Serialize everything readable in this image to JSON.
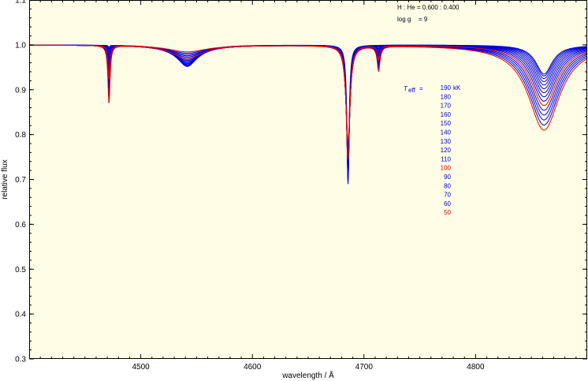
{
  "chart_data": {
    "type": "line",
    "xlabel": "wavelength / Å",
    "ylabel": "relative flux",
    "xlim": [
      4400,
      4900
    ],
    "ylim": [
      0.3,
      1.1
    ],
    "xticks": [
      4500,
      4600,
      4700,
      4800
    ],
    "yticks": [
      0.3,
      0.4,
      0.5,
      0.6,
      0.7,
      0.8,
      0.9,
      1.0,
      1.1
    ],
    "grid": false,
    "background": "#fffde6",
    "annotations": {
      "composition": "H : He = 0.600 : 0.400",
      "logg_label": "log g",
      "logg_value": "= 9",
      "teff_label": "T",
      "teff_sub": "eff",
      "teff_eq": "="
    },
    "legend_unit": "kK",
    "colors": {
      "hot": "#0000dd",
      "cool": "#ee0000"
    },
    "series": [
      {
        "name": "190",
        "color": "#0000dd"
      },
      {
        "name": "180",
        "color": "#0000dd"
      },
      {
        "name": "170",
        "color": "#0000dd"
      },
      {
        "name": "160",
        "color": "#0000dd"
      },
      {
        "name": "150",
        "color": "#0000dd"
      },
      {
        "name": "140",
        "color": "#0000dd"
      },
      {
        "name": "130",
        "color": "#0000dd"
      },
      {
        "name": "120",
        "color": "#0000dd"
      },
      {
        "name": "110",
        "color": "#0000dd"
      },
      {
        "name": "100",
        "color": "#ee0000"
      },
      {
        "name": "90",
        "color": "#0000dd"
      },
      {
        "name": "80",
        "color": "#0000dd"
      },
      {
        "name": "70",
        "color": "#0000dd"
      },
      {
        "name": "60",
        "color": "#0000dd"
      },
      {
        "name": "50",
        "color": "#ee0000"
      }
    ],
    "lines": [
      {
        "center": 4471.5,
        "depth_hot": 0.005,
        "depth_cool": 0.13,
        "width": 0.6
      },
      {
        "center": 4541.6,
        "depth_hot": 0.048,
        "depth_cool": 0.015,
        "width": 11
      },
      {
        "center": 4685.7,
        "depth_hot": 0.31,
        "depth_cool": 0.21,
        "width": 1.2
      },
      {
        "center": 4713.1,
        "depth_hot": 0.0,
        "depth_cool": 0.055,
        "width": 0.8
      },
      {
        "center": 4861.3,
        "depth_hot": 0.065,
        "depth_cool": 0.19,
        "width": 9
      }
    ]
  }
}
